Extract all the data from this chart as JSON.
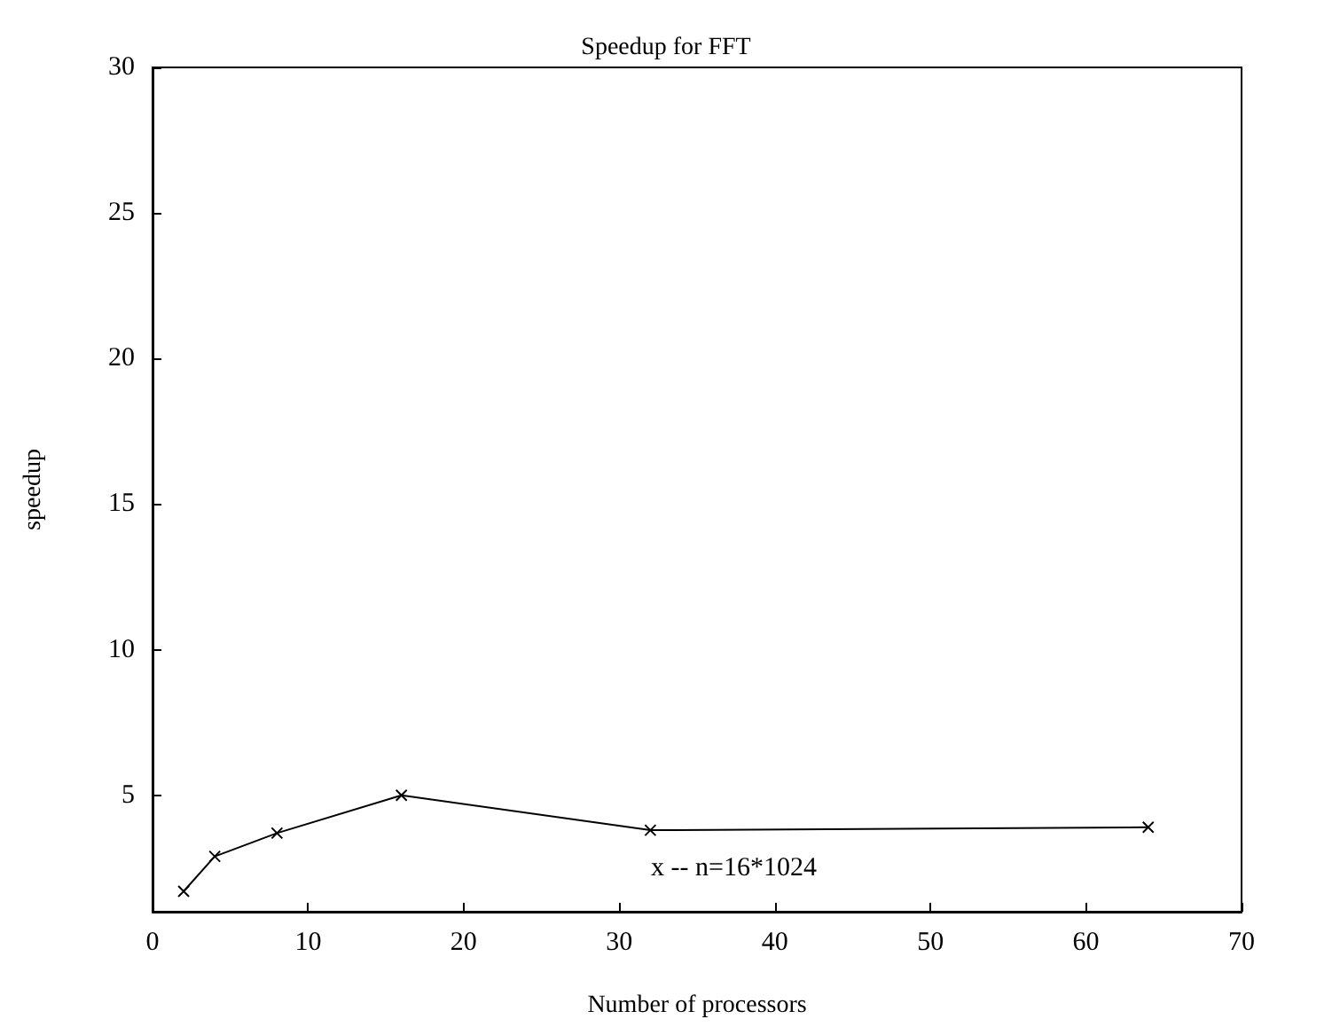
{
  "chart_data": {
    "type": "line",
    "title": "Speedup for FFT",
    "xlabel": "Number of processors",
    "ylabel": "speedup",
    "annotations": [
      "x -- n=16*1024"
    ],
    "x": [
      2,
      4,
      8,
      16,
      32,
      64
    ],
    "series": [
      {
        "color": "#000000",
        "values": [
          1.7,
          2.9,
          3.7,
          5.0,
          3.8,
          3.9
        ]
      }
    ],
    "xlim": [
      0,
      70
    ],
    "xticks": [
      0,
      10,
      20,
      30,
      40,
      50,
      60,
      70
    ],
    "ylim": [
      1,
      30
    ],
    "yticks": [
      5,
      10,
      15,
      20,
      25,
      30
    ],
    "grid": false,
    "marker": "cross",
    "line_style": "solid"
  }
}
